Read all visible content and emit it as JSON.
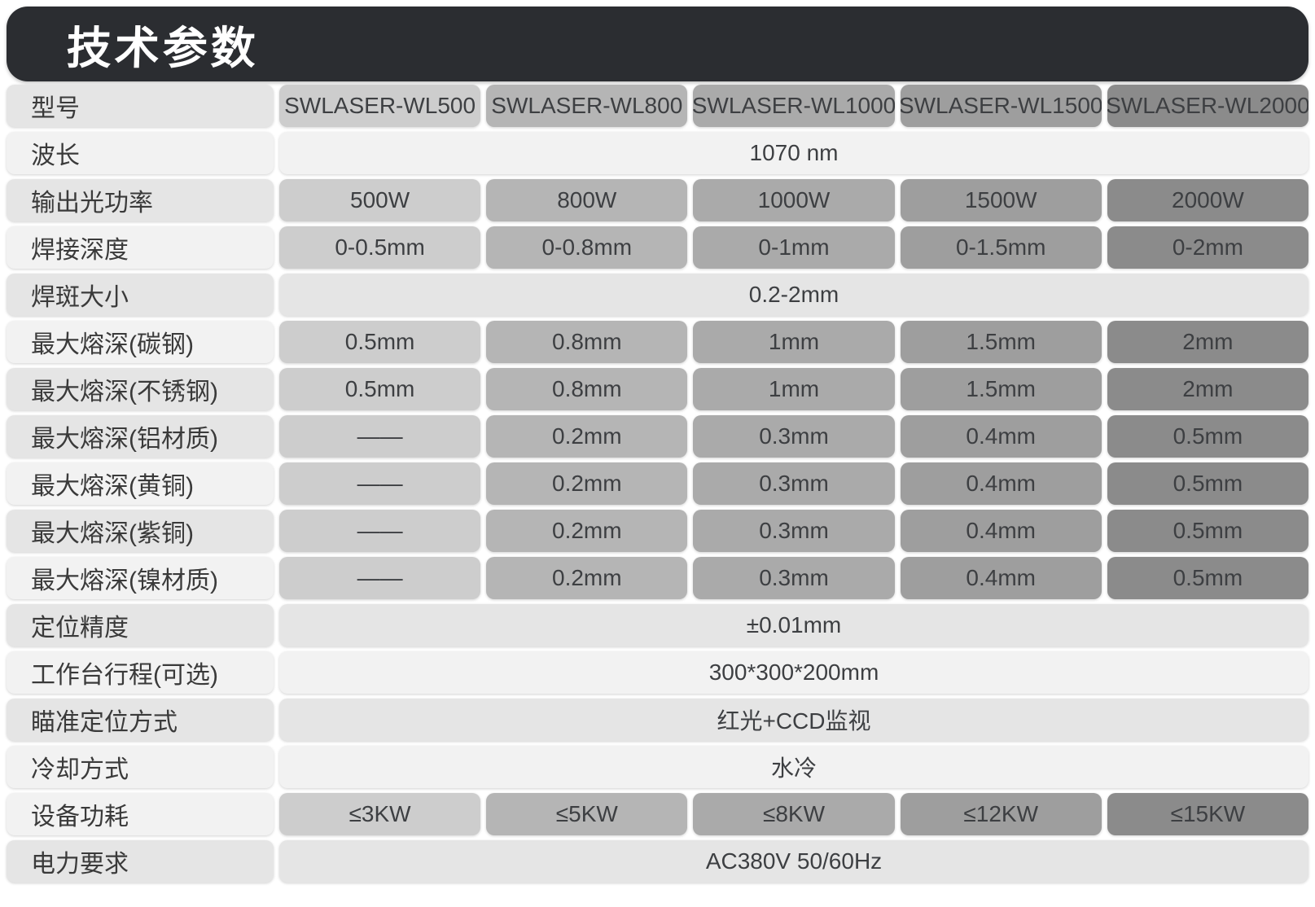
{
  "page": {
    "title": "技术参数"
  },
  "colors": {
    "banner_bg": "#2b2d31",
    "banner_text": "#ffffff",
    "row_tone_dark": "#e5e5e5",
    "row_tone_light": "#f2f2f2",
    "label_text": "#3a3a3a",
    "value_text": "#3d3f42",
    "column_colors": [
      "#cdcdcd",
      "#b5b5b5",
      "#aaaaaa",
      "#9e9e9e",
      "#8b8b8b"
    ]
  },
  "table": {
    "rows": [
      {
        "label": "型号",
        "tone": "dark",
        "values": [
          "SWLASER-WL500",
          "SWLASER-WL800",
          "SWLASER-WL1000",
          "SWLASER-WL1500",
          "SWLASER-WL2000"
        ]
      },
      {
        "label": "波长",
        "tone": "light",
        "span_value": "1070 nm"
      },
      {
        "label": "输出光功率",
        "tone": "dark",
        "values": [
          "500W",
          "800W",
          "1000W",
          "1500W",
          "2000W"
        ]
      },
      {
        "label": "焊接深度",
        "tone": "light",
        "values": [
          "0-0.5mm",
          "0-0.8mm",
          "0-1mm",
          "0-1.5mm",
          "0-2mm"
        ]
      },
      {
        "label": "焊斑大小",
        "tone": "dark",
        "span_value": "0.2-2mm"
      },
      {
        "label": "最大熔深(碳钢)",
        "tone": "light",
        "values": [
          "0.5mm",
          "0.8mm",
          "1mm",
          "1.5mm",
          "2mm"
        ]
      },
      {
        "label": "最大熔深(不锈钢)",
        "tone": "dark",
        "values": [
          "0.5mm",
          "0.8mm",
          "1mm",
          "1.5mm",
          "2mm"
        ]
      },
      {
        "label": "最大熔深(铝材质)",
        "tone": "dark",
        "values": [
          "——",
          "0.2mm",
          "0.3mm",
          "0.4mm",
          "0.5mm"
        ]
      },
      {
        "label": "最大熔深(黄铜)",
        "tone": "light",
        "values": [
          "——",
          "0.2mm",
          "0.3mm",
          "0.4mm",
          "0.5mm"
        ]
      },
      {
        "label": "最大熔深(紫铜)",
        "tone": "dark",
        "values": [
          "——",
          "0.2mm",
          "0.3mm",
          "0.4mm",
          "0.5mm"
        ]
      },
      {
        "label": "最大熔深(镍材质)",
        "tone": "light",
        "values": [
          "——",
          "0.2mm",
          "0.3mm",
          "0.4mm",
          "0.5mm"
        ]
      },
      {
        "label": "定位精度",
        "tone": "dark",
        "span_value": "±0.01mm"
      },
      {
        "label": "工作台行程(可选)",
        "tone": "light",
        "span_value": "300*300*200mm"
      },
      {
        "label": "瞄准定位方式",
        "tone": "dark",
        "span_value": "红光+CCD监视"
      },
      {
        "label": "冷却方式",
        "tone": "light",
        "span_value": "水冷"
      },
      {
        "label": "设备功耗",
        "tone": "light",
        "values": [
          "≤3KW",
          "≤5KW",
          "≤8KW",
          "≤12KW",
          "≤15KW"
        ]
      },
      {
        "label": "电力要求",
        "tone": "dark",
        "span_value": "AC380V 50/60Hz"
      }
    ]
  }
}
